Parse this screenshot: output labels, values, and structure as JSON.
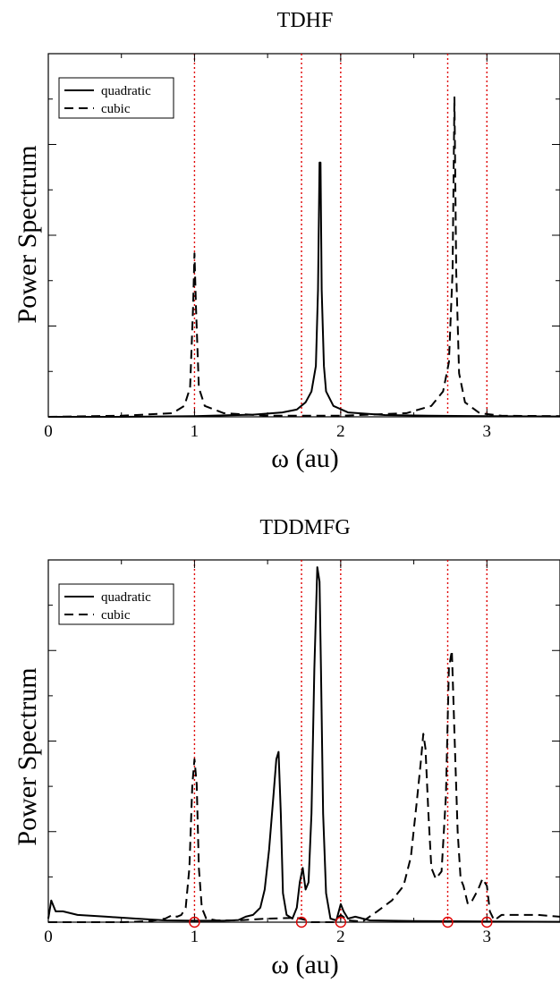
{
  "chart_data": [
    {
      "type": "line",
      "title": "TDHF",
      "xlabel": "ω (au)",
      "ylabel": "Power Spectrum",
      "xlim": [
        0,
        3.5
      ],
      "ylim": [
        0,
        100
      ],
      "x_ticks": [
        "0",
        "1",
        "2",
        "3"
      ],
      "grid": false,
      "legend_position": "top-left",
      "reference_lines_x": [
        1.0,
        1.732,
        2.0,
        2.732,
        3.0
      ],
      "reference_line_color": "#e00000",
      "series": [
        {
          "name": "quadratic",
          "style": "solid",
          "points": [
            [
              0,
              0
            ],
            [
              0.5,
              0
            ],
            [
              1.0,
              0.2
            ],
            [
              1.4,
              0.6
            ],
            [
              1.6,
              1.2
            ],
            [
              1.7,
              2
            ],
            [
              1.76,
              4
            ],
            [
              1.8,
              7
            ],
            [
              1.83,
              14
            ],
            [
              1.845,
              35
            ],
            [
              1.855,
              70
            ],
            [
              1.862,
              70
            ],
            [
              1.87,
              35
            ],
            [
              1.885,
              14
            ],
            [
              1.9,
              7
            ],
            [
              1.95,
              3
            ],
            [
              2.05,
              1.2
            ],
            [
              2.3,
              0.5
            ],
            [
              2.6,
              0.3
            ],
            [
              3.0,
              0.2
            ],
            [
              3.5,
              0.1
            ]
          ]
        },
        {
          "name": "cubic",
          "style": "dashed",
          "points": [
            [
              0,
              0
            ],
            [
              0.5,
              0.3
            ],
            [
              0.85,
              1
            ],
            [
              0.93,
              3
            ],
            [
              0.97,
              8
            ],
            [
              0.99,
              30
            ],
            [
              1.0,
              45
            ],
            [
              1.01,
              30
            ],
            [
              1.03,
              8
            ],
            [
              1.07,
              3
            ],
            [
              1.2,
              1
            ],
            [
              1.5,
              0.3
            ],
            [
              2.0,
              0.3
            ],
            [
              2.45,
              1
            ],
            [
              2.62,
              3
            ],
            [
              2.7,
              7
            ],
            [
              2.74,
              15
            ],
            [
              2.765,
              40
            ],
            [
              2.778,
              88
            ],
            [
              2.79,
              40
            ],
            [
              2.81,
              12
            ],
            [
              2.85,
              4
            ],
            [
              2.95,
              1
            ],
            [
              3.1,
              0.3
            ],
            [
              3.5,
              0.2
            ]
          ]
        }
      ]
    },
    {
      "type": "line",
      "title": "TDDMFG",
      "xlabel": "ω (au)",
      "ylabel": "Power Spectrum",
      "xlim": [
        0,
        3.5
      ],
      "ylim": [
        0,
        100
      ],
      "x_ticks": [
        "0",
        "1",
        "2",
        "3"
      ],
      "grid": false,
      "legend_position": "top-left",
      "reference_lines_x": [
        1.0,
        1.732,
        2.0,
        2.732,
        3.0
      ],
      "reference_line_color": "#e00000",
      "markers_on_axis_x": [
        1.0,
        1.732,
        2.0,
        2.732,
        3.0
      ],
      "series": [
        {
          "name": "quadratic",
          "style": "solid",
          "points": [
            [
              0,
              1
            ],
            [
              0.02,
              6
            ],
            [
              0.05,
              3
            ],
            [
              0.1,
              3
            ],
            [
              0.2,
              2
            ],
            [
              0.4,
              1.5
            ],
            [
              0.6,
              1
            ],
            [
              0.8,
              0.5
            ],
            [
              1.0,
              0.4
            ],
            [
              1.2,
              0.4
            ],
            [
              1.3,
              0.6
            ],
            [
              1.35,
              1.5
            ],
            [
              1.4,
              2
            ],
            [
              1.45,
              4
            ],
            [
              1.48,
              9
            ],
            [
              1.51,
              20
            ],
            [
              1.54,
              35
            ],
            [
              1.56,
              45
            ],
            [
              1.575,
              47
            ],
            [
              1.59,
              30
            ],
            [
              1.605,
              8
            ],
            [
              1.63,
              2
            ],
            [
              1.67,
              1
            ],
            [
              1.7,
              4
            ],
            [
              1.72,
              11
            ],
            [
              1.74,
              15
            ],
            [
              1.76,
              9
            ],
            [
              1.78,
              11
            ],
            [
              1.8,
              30
            ],
            [
              1.82,
              70
            ],
            [
              1.84,
              98
            ],
            [
              1.855,
              94
            ],
            [
              1.865,
              70
            ],
            [
              1.88,
              30
            ],
            [
              1.9,
              8
            ],
            [
              1.93,
              1
            ],
            [
              1.97,
              0.5
            ],
            [
              2.0,
              5
            ],
            [
              2.02,
              3
            ],
            [
              2.05,
              1
            ],
            [
              2.1,
              1.5
            ],
            [
              2.2,
              0.5
            ],
            [
              2.5,
              0.3
            ],
            [
              3.0,
              0.2
            ],
            [
              3.5,
              0.1
            ]
          ]
        },
        {
          "name": "cubic",
          "style": "dashed",
          "points": [
            [
              0,
              0
            ],
            [
              0.5,
              0
            ],
            [
              0.7,
              0.3
            ],
            [
              0.8,
              1
            ],
            [
              0.85,
              2
            ],
            [
              0.88,
              1.5
            ],
            [
              0.91,
              2
            ],
            [
              0.94,
              4
            ],
            [
              0.965,
              15
            ],
            [
              0.985,
              38
            ],
            [
              1.0,
              45
            ],
            [
              1.015,
              38
            ],
            [
              1.03,
              15
            ],
            [
              1.05,
              4
            ],
            [
              1.08,
              1
            ],
            [
              1.15,
              0.5
            ],
            [
              1.3,
              0.5
            ],
            [
              1.5,
              1
            ],
            [
              1.7,
              1.2
            ],
            [
              1.78,
              0.4
            ],
            [
              1.8,
              0
            ],
            [
              1.95,
              0
            ],
            [
              2.0,
              2
            ],
            [
              2.05,
              0.5
            ],
            [
              2.15,
              0.2
            ],
            [
              2.25,
              3
            ],
            [
              2.35,
              6
            ],
            [
              2.43,
              10
            ],
            [
              2.48,
              18
            ],
            [
              2.52,
              33
            ],
            [
              2.55,
              45
            ],
            [
              2.565,
              52
            ],
            [
              2.58,
              48
            ],
            [
              2.6,
              30
            ],
            [
              2.62,
              15
            ],
            [
              2.65,
              12
            ],
            [
              2.69,
              14
            ],
            [
              2.72,
              35
            ],
            [
              2.74,
              70
            ],
            [
              2.76,
              75
            ],
            [
              2.78,
              50
            ],
            [
              2.8,
              25
            ],
            [
              2.82,
              12
            ],
            [
              2.84,
              10
            ],
            [
              2.87,
              5
            ],
            [
              2.9,
              6
            ],
            [
              2.94,
              9
            ],
            [
              2.97,
              12
            ],
            [
              3.0,
              10
            ],
            [
              3.02,
              3
            ],
            [
              3.05,
              0.5
            ],
            [
              3.1,
              2
            ],
            [
              3.2,
              2
            ],
            [
              3.35,
              2
            ],
            [
              3.5,
              1.5
            ]
          ]
        }
      ]
    }
  ]
}
